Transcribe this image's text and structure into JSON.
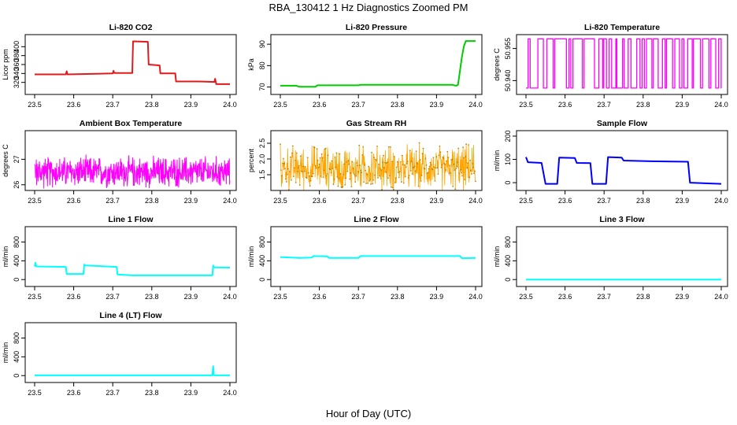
{
  "figure": {
    "title": "RBA_130412  1 Hz Diagnostics Zoomed PM",
    "xlabel": "Hour of Day (UTC)"
  },
  "chart_data": [
    {
      "type": "line",
      "title": "Li-820 CO2",
      "ylabel": "Licor ppm",
      "color": "#e31a1c",
      "xlim": [
        23.5,
        24.0
      ],
      "ylim": [
        300,
        420
      ],
      "xticks": [
        "23.5",
        "23.6",
        "23.7",
        "23.8",
        "23.9",
        "24.0"
      ],
      "yticks": [
        320,
        340,
        360,
        380,
        400
      ],
      "points": [
        [
          23.5,
          338
        ],
        [
          23.58,
          338
        ],
        [
          23.582,
          345
        ],
        [
          23.584,
          338
        ],
        [
          23.7,
          340
        ],
        [
          23.702,
          346
        ],
        [
          23.704,
          341
        ],
        [
          23.75,
          341
        ],
        [
          23.752,
          412
        ],
        [
          23.79,
          411
        ],
        [
          23.792,
          360
        ],
        [
          23.82,
          358
        ],
        [
          23.822,
          340
        ],
        [
          23.86,
          340
        ],
        [
          23.862,
          322
        ],
        [
          23.92,
          322
        ],
        [
          23.96,
          321
        ],
        [
          23.962,
          328
        ],
        [
          23.965,
          316
        ],
        [
          24.0,
          316
        ]
      ]
    },
    {
      "type": "line",
      "title": "Li-820 Pressure",
      "ylabel": "kPa",
      "color": "#00cc00",
      "xlim": [
        23.5,
        24.0
      ],
      "ylim": [
        68,
        93
      ],
      "xticks": [
        "23.5",
        "23.6",
        "23.7",
        "23.8",
        "23.9",
        "24.0"
      ],
      "yticks": [
        70,
        80,
        90
      ],
      "points": [
        [
          23.5,
          70.6
        ],
        [
          23.54,
          70.6
        ],
        [
          23.55,
          70.1
        ],
        [
          23.59,
          70.1
        ],
        [
          23.595,
          70.8
        ],
        [
          23.7,
          70.8
        ],
        [
          23.705,
          71.0
        ],
        [
          23.94,
          71.0
        ],
        [
          23.95,
          70.6
        ],
        [
          23.955,
          71.0
        ],
        [
          23.965,
          84
        ],
        [
          23.97,
          89
        ],
        [
          23.975,
          91.5
        ],
        [
          24.0,
          91.5
        ]
      ]
    },
    {
      "type": "line",
      "title": "Li-820 Temperature",
      "ylabel": "degrees C",
      "color": "#ff00ff",
      "xlim": [
        23.5,
        24.0
      ],
      "ylim": [
        50.935,
        50.96
      ],
      "xticks": [
        "23.5",
        "23.6",
        "23.7",
        "23.8",
        "23.9",
        "24.0"
      ],
      "yticks": [
        50.94,
        50.955
      ],
      "ytick_labels": [
        "50.940",
        "50.955"
      ],
      "low": 50.9365,
      "high": 50.9595
    },
    {
      "type": "line",
      "title": "Ambient Box Temperature",
      "ylabel": "degrees C",
      "color": "#ff00ff",
      "xlim": [
        23.5,
        24.0
      ],
      "ylim": [
        25.9,
        28.0
      ],
      "xticks": [
        "23.5",
        "23.6",
        "23.7",
        "23.8",
        "23.9",
        "24.0"
      ],
      "yticks": [
        26,
        27
      ],
      "mean": 26.5,
      "spread": 0.55
    },
    {
      "type": "scatter",
      "title": "Gas Stream RH",
      "ylabel": "percent",
      "color": "#ffa500",
      "xlim": [
        23.5,
        24.0
      ],
      "ylim": [
        1.1,
        2.8
      ],
      "xticks": [
        "23.5",
        "23.6",
        "23.7",
        "23.8",
        "23.9",
        "24.0"
      ],
      "yticks": [
        1.5,
        2.0,
        2.5
      ],
      "ytick_labels": [
        "1.5",
        "2.0",
        "2.5"
      ],
      "mean": 1.65,
      "spread": 0.7
    },
    {
      "type": "line",
      "title": "Sample Flow",
      "ylabel": "ml/min",
      "color": "#0000ff",
      "xlim": [
        23.5,
        24.0
      ],
      "ylim": [
        -20,
        210
      ],
      "xticks": [
        "23.5",
        "23.6",
        "23.7",
        "23.8",
        "23.9",
        "24.0"
      ],
      "yticks": [
        0,
        100,
        200
      ],
      "points": [
        [
          23.5,
          110
        ],
        [
          23.505,
          88
        ],
        [
          23.54,
          85
        ],
        [
          23.545,
          40
        ],
        [
          23.55,
          -5
        ],
        [
          23.58,
          -5
        ],
        [
          23.585,
          108
        ],
        [
          23.625,
          106
        ],
        [
          23.63,
          85
        ],
        [
          23.665,
          84
        ],
        [
          23.67,
          -5
        ],
        [
          23.705,
          -5
        ],
        [
          23.71,
          110
        ],
        [
          23.745,
          108
        ],
        [
          23.75,
          95
        ],
        [
          23.82,
          92
        ],
        [
          23.915,
          90
        ],
        [
          23.92,
          0
        ],
        [
          24.0,
          -5
        ]
      ]
    },
    {
      "type": "line",
      "title": "Line 1 Flow",
      "ylabel": "ml/min",
      "color": "#00ffff",
      "xlim": [
        23.5,
        24.0
      ],
      "ylim": [
        -80,
        1060
      ],
      "xticks": [
        "23.5",
        "23.6",
        "23.7",
        "23.8",
        "23.9",
        "24.0"
      ],
      "yticks": [
        0,
        400,
        800
      ],
      "points": [
        [
          23.5,
          280
        ],
        [
          23.502,
          360
        ],
        [
          23.504,
          280
        ],
        [
          23.58,
          270
        ],
        [
          23.582,
          120
        ],
        [
          23.625,
          120
        ],
        [
          23.627,
          320
        ],
        [
          23.63,
          300
        ],
        [
          23.71,
          270
        ],
        [
          23.712,
          110
        ],
        [
          23.75,
          90
        ],
        [
          23.955,
          90
        ],
        [
          23.957,
          300
        ],
        [
          23.96,
          260
        ],
        [
          24.0,
          255
        ]
      ]
    },
    {
      "type": "line",
      "title": "Line 2 Flow",
      "ylabel": "ml/min",
      "color": "#00ffff",
      "xlim": [
        23.5,
        24.0
      ],
      "ylim": [
        -80,
        1060
      ],
      "xticks": [
        "23.5",
        "23.6",
        "23.7",
        "23.8",
        "23.9",
        "24.0"
      ],
      "yticks": [
        0,
        400,
        800
      ],
      "points": [
        [
          23.5,
          480
        ],
        [
          23.55,
          460
        ],
        [
          23.58,
          470
        ],
        [
          23.585,
          500
        ],
        [
          23.62,
          495
        ],
        [
          23.625,
          460
        ],
        [
          23.7,
          460
        ],
        [
          23.705,
          500
        ],
        [
          23.96,
          500
        ],
        [
          23.965,
          455
        ],
        [
          24.0,
          460
        ]
      ]
    },
    {
      "type": "line",
      "title": "Line 3 Flow",
      "ylabel": "ml/min",
      "color": "#00ffff",
      "xlim": [
        23.5,
        24.0
      ],
      "ylim": [
        -80,
        1060
      ],
      "xticks": [
        "23.5",
        "23.6",
        "23.7",
        "23.8",
        "23.9",
        "24.0"
      ],
      "yticks": [
        0,
        400,
        800
      ],
      "points": [
        [
          23.5,
          0
        ],
        [
          24.0,
          0
        ]
      ]
    },
    {
      "type": "line",
      "title": "Line 4 (LT) Flow",
      "ylabel": "ml/min",
      "color": "#00ffff",
      "xlim": [
        23.5,
        24.0
      ],
      "ylim": [
        -80,
        1060
      ],
      "xticks": [
        "23.5",
        "23.6",
        "23.7",
        "23.8",
        "23.9",
        "24.0"
      ],
      "yticks": [
        0,
        400,
        800
      ],
      "points": [
        [
          23.5,
          5
        ],
        [
          23.955,
          5
        ],
        [
          23.957,
          200
        ],
        [
          23.959,
          5
        ],
        [
          24.0,
          5
        ]
      ]
    }
  ]
}
